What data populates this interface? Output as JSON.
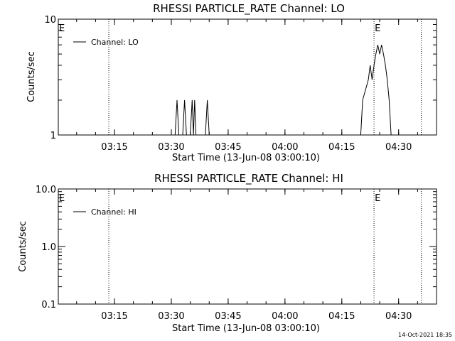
{
  "footer_timestamp": "14-Oct-2021 18:35",
  "chart_data": [
    {
      "type": "line",
      "title": "RHESSI PARTICLE_RATE Channel: LO",
      "xlabel": "Start Time (13-Jun-08 03:00:10)",
      "ylabel": "Counts/sec",
      "yscale": "log",
      "ylim": [
        1,
        10
      ],
      "yticks": [
        "1",
        "10"
      ],
      "xlim": [
        "03:00:10",
        "04:40:00"
      ],
      "xticks": [
        "03:15",
        "03:30",
        "03:45",
        "04:00",
        "04:15",
        "04:30"
      ],
      "legend": {
        "position": "top-left",
        "label": "Channel: LO"
      },
      "markers": [
        {
          "time": "03:00:10",
          "label": "E"
        },
        {
          "time": "03:13:30",
          "label": ""
        },
        {
          "time": "04:23:30",
          "label": "E"
        },
        {
          "time": "04:36:00",
          "label": ""
        }
      ],
      "series": [
        {
          "name": "Channel: LO",
          "points": [
            [
              "03:00:10",
              1
            ],
            [
              "03:31:00",
              1
            ],
            [
              "03:31:30",
              2
            ],
            [
              "03:32:00",
              1
            ],
            [
              "03:33:00",
              1
            ],
            [
              "03:33:30",
              2
            ],
            [
              "03:34:00",
              1
            ],
            [
              "03:35:00",
              1
            ],
            [
              "03:35:30",
              2
            ],
            [
              "03:35:50",
              1
            ],
            [
              "03:36:10",
              2
            ],
            [
              "03:36:30",
              1
            ],
            [
              "03:39:00",
              1
            ],
            [
              "03:39:30",
              2
            ],
            [
              "03:40:00",
              1
            ],
            [
              "04:20:00",
              1
            ],
            [
              "04:20:30",
              2
            ],
            [
              "04:22:00",
              3
            ],
            [
              "04:22:30",
              4
            ],
            [
              "04:23:00",
              3
            ],
            [
              "04:23:30",
              4
            ],
            [
              "04:24:00",
              5
            ],
            [
              "04:24:30",
              6
            ],
            [
              "04:25:00",
              5
            ],
            [
              "04:25:30",
              6
            ],
            [
              "04:26:00",
              5
            ],
            [
              "04:26:30",
              4
            ],
            [
              "04:27:00",
              3
            ],
            [
              "04:27:30",
              2
            ],
            [
              "04:28:00",
              1
            ],
            [
              "04:40:00",
              1
            ]
          ]
        }
      ]
    },
    {
      "type": "line",
      "title": "RHESSI PARTICLE_RATE Channel: HI",
      "xlabel": "Start Time (13-Jun-08 03:00:10)",
      "ylabel": "Counts/sec",
      "yscale": "log",
      "ylim": [
        0.1,
        10
      ],
      "yticks": [
        "0.1",
        "1.0",
        "10.0"
      ],
      "xlim": [
        "03:00:10",
        "04:40:00"
      ],
      "xticks": [
        "03:15",
        "03:30",
        "03:45",
        "04:00",
        "04:15",
        "04:30"
      ],
      "legend": {
        "position": "top-left",
        "label": "Channel: HI"
      },
      "markers": [
        {
          "time": "03:00:10",
          "label": "E"
        },
        {
          "time": "03:13:30",
          "label": ""
        },
        {
          "time": "04:23:30",
          "label": "E"
        },
        {
          "time": "04:36:00",
          "label": ""
        }
      ],
      "series": [
        {
          "name": "Channel: HI",
          "points": []
        }
      ]
    }
  ]
}
